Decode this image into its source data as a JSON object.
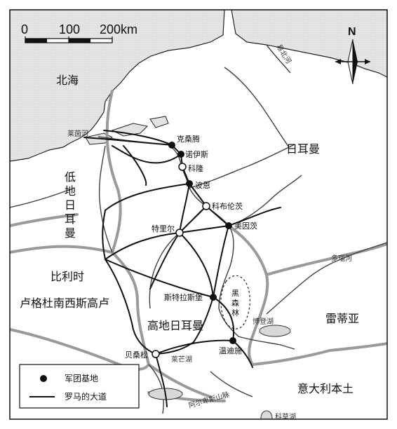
{
  "scale_bar": {
    "ticks": [
      "0",
      "100",
      "200km"
    ]
  },
  "north_arrow": {
    "label": "N"
  },
  "regions": {
    "north_sea": "北海",
    "germania": "日耳曼",
    "germania_inferior": [
      "低",
      "地",
      "日",
      "耳",
      "曼"
    ],
    "belgica": "比利时",
    "gallia_lugdunensis": "卢格杜南西斯高卢",
    "germania_superior": "高地日耳曼",
    "raetia": "雷蒂亚",
    "italia": "意大利本土"
  },
  "rivers": {
    "rhine": "莱茵河",
    "elbe": "易北河",
    "danube": "多瑙河",
    "lake_constance": "博登湖",
    "lake_neuchatel": "莱芒湖",
    "lake_como": "科莫湖",
    "alps": "阿尔卑斯山脉"
  },
  "black_forest": [
    "黑",
    "森",
    "林"
  ],
  "cities": {
    "xanten": "克桑腾",
    "neuss": "诺伊斯",
    "cologne": "科隆",
    "bonn": "波恩",
    "koblenz": "科布伦茨",
    "mainz": "美因茨",
    "trier": "特里尔",
    "strasbourg": "斯特拉斯堡",
    "besancon": "贝桑松",
    "windisch": "温迪施"
  },
  "legend": {
    "legion_base": "军团基地",
    "roman_road": "罗马的大道"
  },
  "colors": {
    "sea": "#e3e3e3",
    "border": "#9a9a9a",
    "road": "#111111",
    "river": "#444444"
  }
}
